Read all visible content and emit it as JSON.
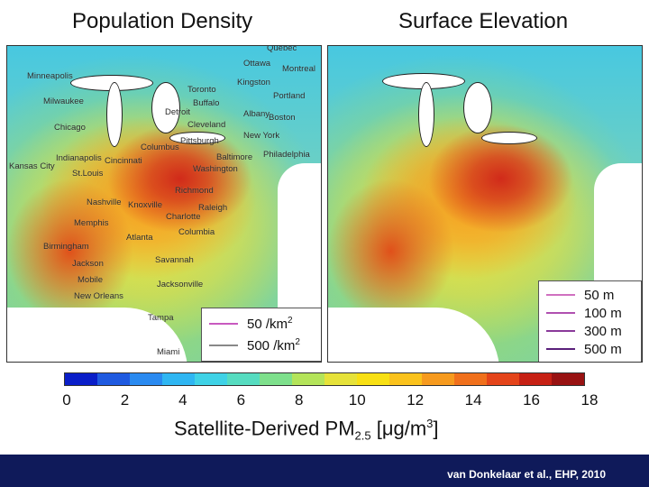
{
  "titles": {
    "left": "Population Density",
    "right": "Surface Elevation"
  },
  "cities": [
    "Quebec",
    "Ottawa",
    "Montreal",
    "Minneapolis",
    "Kingston",
    "Milwaukee",
    "Toronto",
    "Buffalo",
    "Portland",
    "Detroit",
    "Albany",
    "Boston",
    "Chicago",
    "Cleveland",
    "New York",
    "Columbus",
    "Pittsburgh",
    "Indianapolis",
    "Cincinnati",
    "Philadelphia",
    "Baltimore",
    "Kansas City",
    "St.Louis",
    "Washington",
    "Richmond",
    "Nashville",
    "Knoxville",
    "Raleigh",
    "Charlotte",
    "Memphis",
    "Atlanta",
    "Columbia",
    "Birmingham",
    "Jackson",
    "Savannah",
    "Mobile",
    "Jacksonville",
    "New Orleans",
    "Tampa",
    "Miami"
  ],
  "legend_left": {
    "items": [
      {
        "value": "50",
        "unit": " /km",
        "exp": "2",
        "color": "#c85ac0"
      },
      {
        "value": "500",
        "unit": " /km",
        "exp": "2",
        "color": "#888888"
      }
    ]
  },
  "legend_right": {
    "items": [
      {
        "label": "50 m",
        "color": "#d070c0"
      },
      {
        "label": "100 m",
        "color": "#b050b0"
      },
      {
        "label": "300 m",
        "color": "#8a3a9a"
      },
      {
        "label": "500 m",
        "color": "#5a207a"
      }
    ]
  },
  "colorbar": {
    "colors": [
      "#0a1ec8",
      "#1f5ae0",
      "#2a8af0",
      "#2fb6f2",
      "#3fd2e6",
      "#56dcc0",
      "#7ee08c",
      "#b4e45a",
      "#e6e23a",
      "#f8e014",
      "#fac21c",
      "#f69a1e",
      "#f0701c",
      "#e4441a",
      "#c62014",
      "#981212"
    ],
    "ticks": [
      "0",
      "2",
      "4",
      "6",
      "8",
      "10",
      "12",
      "14",
      "16",
      "18"
    ],
    "label_main": "Satellite-Derived PM",
    "label_sub": "2.5",
    "label_units": " [μg/m",
    "label_exp": "3",
    "label_close": "]"
  },
  "footer": {
    "citation": "van Donkelaar et al., EHP, 2010"
  },
  "colors": {
    "footer_bg": "#0f1a5a",
    "low": "#0a1ec8",
    "high": "#981212"
  }
}
